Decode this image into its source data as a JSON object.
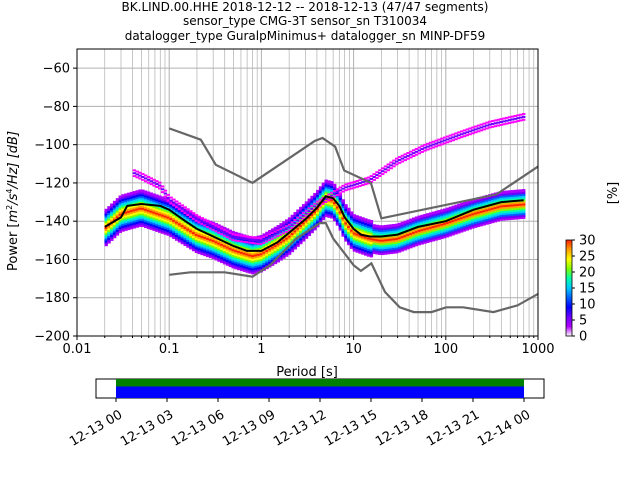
{
  "chart_data": [
    {
      "type": "heatmap",
      "title": "BK.LIND.00.HHE   2018-12-12 -- 2018-12-13  (47/47 segments)",
      "subtitle_lines": [
        "sensor_type CMG-3T sensor_sn T310034",
        "datalogger_type GuralpMinimus+ datalogger_sn MINP-DF59"
      ],
      "xlabel": "Period [s]",
      "ylabel_parts": {
        "prefix": "Power [",
        "m": "m",
        "sup2": "2",
        "slash_s": "/s",
        "sup4": "4",
        "tail": "/Hz] [dB]"
      },
      "xscale": "log",
      "xlim": [
        0.01,
        1000
      ],
      "ylim": [
        -200,
        -50
      ],
      "x_ticks": [
        {
          "value": 0.01,
          "label": "0.01"
        },
        {
          "value": 0.1,
          "label": "0.1"
        },
        {
          "value": 1,
          "label": "1"
        },
        {
          "value": 10,
          "label": "10"
        },
        {
          "value": 100,
          "label": "100"
        },
        {
          "value": 1000,
          "label": "1000"
        }
      ],
      "y_ticks": [
        {
          "value": -60,
          "label": "−60"
        },
        {
          "value": -80,
          "label": "−80"
        },
        {
          "value": -100,
          "label": "−100"
        },
        {
          "value": -120,
          "label": "−120"
        },
        {
          "value": -140,
          "label": "−140"
        },
        {
          "value": -160,
          "label": "−160"
        },
        {
          "value": -180,
          "label": "−180"
        },
        {
          "value": -200,
          "label": "−200"
        }
      ],
      "grid": true,
      "colorbar": {
        "label": "[%]",
        "range": [
          0,
          30
        ],
        "ticks": [
          {
            "value": 0,
            "label": "0"
          },
          {
            "value": 5,
            "label": "5"
          },
          {
            "value": 10,
            "label": "10"
          },
          {
            "value": 15,
            "label": "15"
          },
          {
            "value": 20,
            "label": "20"
          },
          {
            "value": 25,
            "label": "25"
          },
          {
            "value": 30,
            "label": "30"
          }
        ]
      },
      "series": [
        {
          "role": "noise-model-high",
          "color": "#666666",
          "points": [
            [
              0.1,
              -91.5
            ],
            [
              0.22,
              -97.4
            ],
            [
              0.32,
              -110.5
            ],
            [
              0.8,
              -120
            ],
            [
              3.8,
              -98
            ],
            [
              4.6,
              -96.5
            ],
            [
              6.3,
              -101
            ],
            [
              7.9,
              -113.5
            ],
            [
              15.4,
              -120
            ],
            [
              20,
              -138.5
            ],
            [
              354,
              -126
            ],
            [
              1000,
              -111.4
            ]
          ]
        },
        {
          "role": "noise-model-low",
          "color": "#666666",
          "points": [
            [
              0.1,
              -168
            ],
            [
              0.17,
              -166.7
            ],
            [
              0.4,
              -166.7
            ],
            [
              0.8,
              -169
            ],
            [
              1.24,
              -163
            ],
            [
              2.4,
              -149
            ],
            [
              4.3,
              -141
            ],
            [
              5,
              -141
            ],
            [
              6,
              -149
            ],
            [
              10,
              -163
            ],
            [
              12,
              -166
            ],
            [
              15.6,
              -162
            ],
            [
              21.9,
              -177
            ],
            [
              31.6,
              -185
            ],
            [
              45,
              -187.5
            ],
            [
              70,
              -187.5
            ],
            [
              101,
              -185
            ],
            [
              154,
              -185
            ],
            [
              328,
              -187.5
            ],
            [
              600,
              -184
            ],
            [
              1000,
              -178
            ]
          ]
        },
        {
          "role": "mean-psd",
          "color": "#000000",
          "points": [
            [
              0.02,
              -143
            ],
            [
              0.03,
              -138
            ],
            [
              0.035,
              -132
            ],
            [
              0.05,
              -131
            ],
            [
              0.08,
              -132
            ],
            [
              0.1,
              -134
            ],
            [
              0.15,
              -140
            ],
            [
              0.2,
              -144
            ],
            [
              0.3,
              -148
            ],
            [
              0.5,
              -153
            ],
            [
              0.7,
              -155.5
            ],
            [
              1,
              -155.5
            ],
            [
              1.5,
              -151
            ],
            [
              2,
              -146
            ],
            [
              3,
              -139
            ],
            [
              4,
              -133
            ],
            [
              5,
              -127
            ],
            [
              6,
              -128
            ],
            [
              7,
              -132
            ],
            [
              8,
              -138
            ],
            [
              10,
              -144
            ],
            [
              12,
              -147
            ],
            [
              15,
              -148
            ],
            [
              20,
              -148
            ],
            [
              30,
              -147
            ],
            [
              50,
              -143
            ],
            [
              100,
              -140
            ],
            [
              200,
              -134
            ],
            [
              400,
              -130
            ],
            [
              700,
              -129
            ]
          ]
        }
      ],
      "density_bands": [
        {
          "role": "microseism-body",
          "color": "#00c8ff",
          "points": [
            [
              0.02,
              -144
            ],
            [
              0.03,
              -136
            ],
            [
              0.05,
              -133
            ],
            [
              0.1,
              -138
            ],
            [
              0.2,
              -147
            ],
            [
              0.3,
              -150
            ],
            [
              0.5,
              -155
            ],
            [
              0.8,
              -158
            ],
            [
              1,
              -157
            ],
            [
              1.5,
              -152
            ],
            [
              2,
              -148
            ],
            [
              3,
              -140
            ],
            [
              4,
              -134
            ],
            [
              5,
              -128
            ],
            [
              6,
              -129
            ],
            [
              7,
              -134
            ],
            [
              8,
              -140
            ],
            [
              10,
              -146
            ],
            [
              15,
              -149
            ],
            [
              20,
              -150
            ],
            [
              30,
              -149
            ],
            [
              50,
              -145
            ],
            [
              100,
              -141
            ],
            [
              200,
              -136
            ],
            [
              400,
              -132
            ],
            [
              700,
              -131
            ]
          ]
        },
        {
          "role": "microseism-core",
          "color": "#0000ff",
          "points": [
            [
              0.02,
              -143
            ],
            [
              0.03,
              -137
            ],
            [
              0.05,
              -132
            ],
            [
              0.1,
              -136
            ],
            [
              0.2,
              -146
            ],
            [
              0.3,
              -149
            ],
            [
              0.5,
              -154
            ],
            [
              0.8,
              -157
            ],
            [
              1,
              -156
            ],
            [
              1.5,
              -151
            ],
            [
              2,
              -147
            ],
            [
              3,
              -139
            ],
            [
              4,
              -133
            ],
            [
              5,
              -127
            ],
            [
              6,
              -128
            ],
            [
              7,
              -133
            ],
            [
              8,
              -139
            ],
            [
              10,
              -145
            ],
            [
              15,
              -148
            ],
            [
              20,
              -149
            ],
            [
              30,
              -148
            ],
            [
              50,
              -144
            ],
            [
              100,
              -140
            ],
            [
              200,
              -135
            ],
            [
              400,
              -131
            ],
            [
              700,
              -130
            ]
          ]
        },
        {
          "role": "upper-scatter",
          "color": "#ff00ff",
          "points": [
            [
              0.04,
              -116
            ],
            [
              0.05,
              -118
            ],
            [
              0.08,
              -123
            ],
            [
              0.1,
              -130
            ],
            [
              0.2,
              -140
            ],
            [
              0.5,
              -150
            ],
            [
              1,
              -152
            ],
            [
              2,
              -145
            ],
            [
              4,
              -133
            ],
            [
              8,
              -124
            ],
            [
              15,
              -120
            ],
            [
              30,
              -110
            ],
            [
              60,
              -103
            ],
            [
              150,
              -96
            ],
            [
              300,
              -91
            ],
            [
              700,
              -87
            ]
          ]
        }
      ]
    },
    {
      "type": "timeline",
      "x_ticks": [
        "12-13 00",
        "12-13 03",
        "12-13 06",
        "12-13 09",
        "12-13 12",
        "12-13 15",
        "12-13 18",
        "12-13 21",
        "12-14 00"
      ],
      "bars": [
        {
          "role": "data-availability",
          "color": "#008000",
          "start": "12-13 00",
          "end": "12-14 00"
        },
        {
          "role": "segments-used",
          "color": "#0000ff",
          "start": "12-13 00",
          "end": "12-14 00"
        }
      ]
    }
  ]
}
